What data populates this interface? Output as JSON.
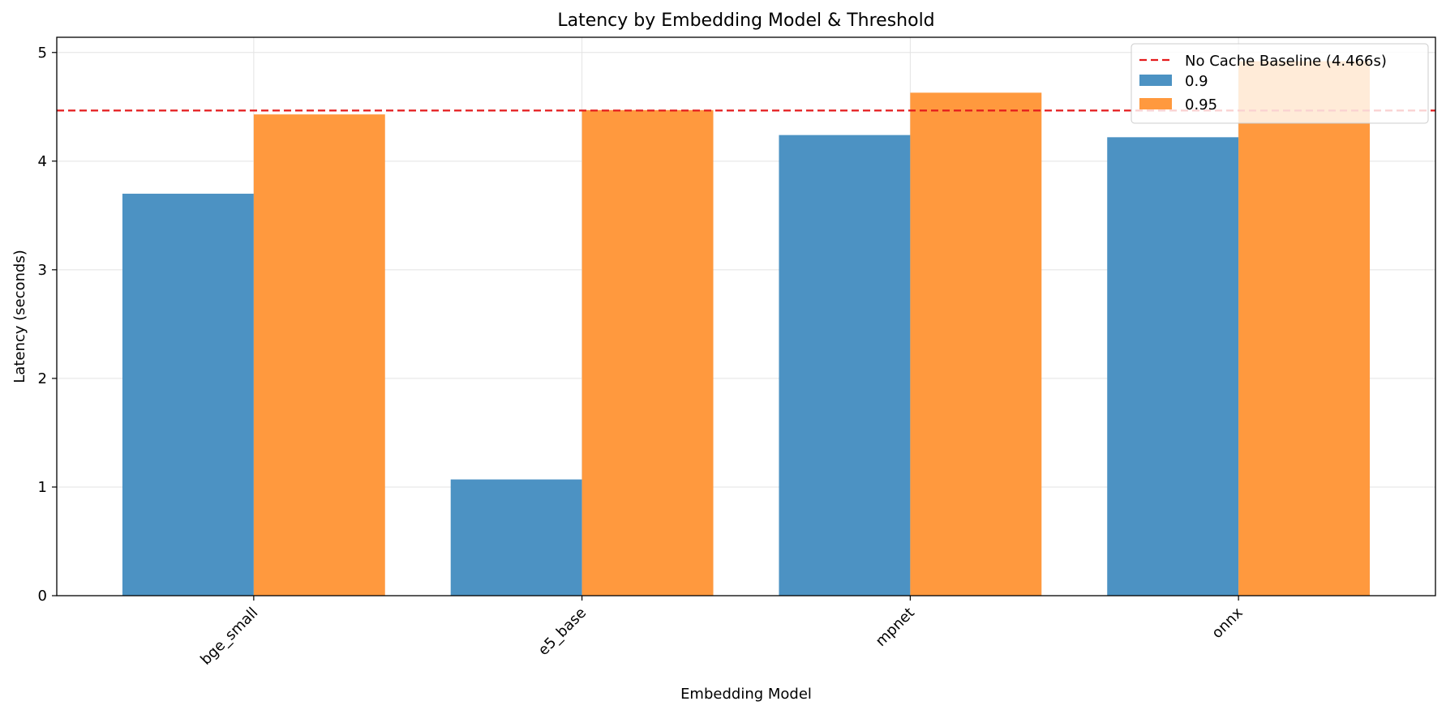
{
  "chart_data": {
    "type": "bar",
    "title": "Latency by Embedding Model & Threshold",
    "xlabel": "Embedding Model",
    "ylabel": "Latency (seconds)",
    "categories": [
      "bge_small",
      "e5_base",
      "mpnet",
      "onnx"
    ],
    "series": [
      {
        "name": "0.9",
        "values": [
          3.7,
          1.07,
          4.24,
          4.22
        ],
        "color": "#4c92c3"
      },
      {
        "name": "0.95",
        "values": [
          4.43,
          4.47,
          4.63,
          4.92
        ],
        "color": "#ff993e"
      }
    ],
    "baseline": {
      "label": "No Cache Baseline (4.466s)",
      "value": 4.466,
      "color": "#e41a1c",
      "style": "dashed"
    },
    "ylim": [
      0,
      5.14
    ],
    "yticks": [
      0,
      1,
      2,
      3,
      4,
      5
    ],
    "grid": true,
    "legend_position": "top-right"
  }
}
